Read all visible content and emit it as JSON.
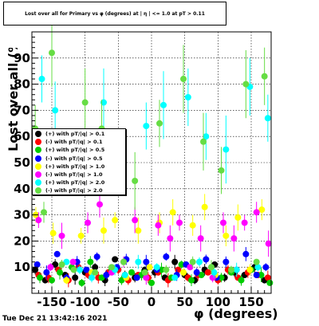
{
  "chart_data": {
    "type": "scatter",
    "title": "Lost over all for Primary vs φ (degrees) at | η | <= 1.0 at pT > 0.11",
    "xlabel": "φ (degrees)",
    "ylabel": "Lost over all (%)",
    "xlim": [
      -180,
      180
    ],
    "ylim": [
      0,
      100
    ],
    "x_ticks": [
      "-150",
      "-100",
      "-50",
      "0",
      "50",
      "100",
      "150"
    ],
    "y_ticks": [
      "10",
      "20",
      "30",
      "40",
      "50",
      "60",
      "70",
      "80",
      "90"
    ],
    "grid": true,
    "legend_position": "left-middle",
    "series": [
      {
        "name": "(+) with pT/|q| > 0.1",
        "color": "#000000",
        "points": [
          [
            -175,
            9
          ],
          [
            -160,
            5
          ],
          [
            -145,
            11
          ],
          [
            -130,
            7
          ],
          [
            -115,
            6
          ],
          [
            -100,
            8
          ],
          [
            -85,
            10
          ],
          [
            -70,
            5
          ],
          [
            -55,
            13
          ],
          [
            -40,
            7
          ],
          [
            -25,
            6
          ],
          [
            -10,
            9
          ],
          [
            5,
            8
          ],
          [
            20,
            6
          ],
          [
            35,
            12
          ],
          [
            50,
            7
          ],
          [
            65,
            5
          ],
          [
            80,
            9
          ],
          [
            95,
            11
          ],
          [
            110,
            6
          ],
          [
            125,
            8
          ],
          [
            140,
            7
          ],
          [
            155,
            10
          ],
          [
            170,
            5
          ]
        ]
      },
      {
        "name": "(-) with pT/|q| > 0.1",
        "color": "#ff0000",
        "points": [
          [
            -170,
            7
          ],
          [
            -155,
            6
          ],
          [
            -140,
            9
          ],
          [
            -125,
            5
          ],
          [
            -110,
            10
          ],
          [
            -95,
            7
          ],
          [
            -80,
            6
          ],
          [
            -65,
            8
          ],
          [
            -50,
            9
          ],
          [
            -35,
            5
          ],
          [
            -20,
            7
          ],
          [
            -5,
            6
          ],
          [
            10,
            8
          ],
          [
            25,
            5
          ],
          [
            40,
            9
          ],
          [
            55,
            6
          ],
          [
            70,
            7
          ],
          [
            85,
            8
          ],
          [
            100,
            5
          ],
          [
            115,
            9
          ],
          [
            130,
            6
          ],
          [
            145,
            8
          ],
          [
            160,
            7
          ],
          [
            175,
            6
          ]
        ]
      },
      {
        "name": "(+) with pT/|q| > 0.5",
        "color": "#00cc00",
        "points": [
          [
            -168,
            6
          ],
          [
            -150,
            5
          ],
          [
            -138,
            8
          ],
          [
            -120,
            10
          ],
          [
            -105,
            4
          ],
          [
            -92,
            12
          ],
          [
            -75,
            6
          ],
          [
            -60,
            9
          ],
          [
            -45,
            5
          ],
          [
            -30,
            8
          ],
          [
            -15,
            7
          ],
          [
            0,
            4
          ],
          [
            15,
            9
          ],
          [
            30,
            6
          ],
          [
            45,
            11
          ],
          [
            60,
            5
          ],
          [
            75,
            7
          ],
          [
            90,
            10
          ],
          [
            105,
            6
          ],
          [
            120,
            8
          ],
          [
            135,
            5
          ],
          [
            150,
            9
          ],
          [
            165,
            7
          ],
          [
            178,
            4
          ]
        ]
      },
      {
        "name": "(-) with pT/|q| > 0.5",
        "color": "#0000ff",
        "points": [
          [
            -172,
            11
          ],
          [
            -158,
            8
          ],
          [
            -142,
            15
          ],
          [
            -128,
            6
          ],
          [
            -112,
            12
          ],
          [
            -98,
            9
          ],
          [
            -82,
            14
          ],
          [
            -68,
            7
          ],
          [
            -52,
            10
          ],
          [
            -38,
            13
          ],
          [
            -22,
            6
          ],
          [
            -8,
            12
          ],
          [
            8,
            9
          ],
          [
            22,
            14
          ],
          [
            38,
            7
          ],
          [
            52,
            11
          ],
          [
            68,
            8
          ],
          [
            82,
            13
          ],
          [
            98,
            6
          ],
          [
            112,
            12
          ],
          [
            128,
            9
          ],
          [
            142,
            15
          ],
          [
            158,
            7
          ],
          [
            172,
            10
          ]
        ]
      },
      {
        "name": "(+) with pT/|q| > 1.0",
        "color": "#ffff00",
        "points": [
          [
            -174,
            30
          ],
          [
            -148,
            23
          ],
          [
            -128,
            5
          ],
          [
            -106,
            22
          ],
          [
            -90,
            8
          ],
          [
            -72,
            24
          ],
          [
            -55,
            28
          ],
          [
            -38,
            6
          ],
          [
            -20,
            24
          ],
          [
            -3,
            10
          ],
          [
            12,
            27
          ],
          [
            32,
            31
          ],
          [
            48,
            8
          ],
          [
            62,
            26
          ],
          [
            80,
            33
          ],
          [
            96,
            7
          ],
          [
            112,
            22
          ],
          [
            130,
            29
          ],
          [
            148,
            9
          ],
          [
            166,
            32
          ]
        ]
      },
      {
        "name": "(-) with pT/|q| > 1.0",
        "color": "#ff00ff",
        "points": [
          [
            -170,
            28
          ],
          [
            -152,
            10
          ],
          [
            -135,
            22
          ],
          [
            -118,
            12
          ],
          [
            -96,
            27
          ],
          [
            -78,
            34
          ],
          [
            -60,
            8
          ],
          [
            -42,
            12
          ],
          [
            -25,
            28
          ],
          [
            -8,
            6
          ],
          [
            10,
            26
          ],
          [
            28,
            21
          ],
          [
            42,
            27
          ],
          [
            58,
            10
          ],
          [
            74,
            21
          ],
          [
            92,
            6
          ],
          [
            108,
            27
          ],
          [
            124,
            21
          ],
          [
            140,
            27
          ],
          [
            158,
            31
          ],
          [
            176,
            19
          ]
        ]
      },
      {
        "name": "(+) with pT/|q| > 2.0",
        "color": "#00ffff",
        "points": [
          [
            -165,
            82
          ],
          [
            -145,
            70
          ],
          [
            -128,
            12
          ],
          [
            -108,
            9
          ],
          [
            -90,
            6
          ],
          [
            -72,
            73
          ],
          [
            -55,
            9
          ],
          [
            -40,
            7
          ],
          [
            -20,
            12
          ],
          [
            -8,
            64
          ],
          [
            8,
            10
          ],
          [
            18,
            72
          ],
          [
            35,
            6
          ],
          [
            55,
            75
          ],
          [
            72,
            12
          ],
          [
            82,
            60
          ],
          [
            94,
            8
          ],
          [
            112,
            55
          ],
          [
            128,
            9
          ],
          [
            148,
            79
          ],
          [
            160,
            10
          ],
          [
            175,
            67
          ]
        ]
      },
      {
        "name": "(-) with pT/|q| > 2.0",
        "color": "#66dd44",
        "points": [
          [
            -175,
            63
          ],
          [
            -162,
            31
          ],
          [
            -150,
            92
          ],
          [
            -135,
            11
          ],
          [
            -117,
            9
          ],
          [
            -100,
            73
          ],
          [
            -85,
            8
          ],
          [
            -75,
            63
          ],
          [
            -60,
            10
          ],
          [
            -42,
            12
          ],
          [
            -25,
            43
          ],
          [
            -10,
            8
          ],
          [
            12,
            65
          ],
          [
            22,
            9
          ],
          [
            48,
            82
          ],
          [
            62,
            12
          ],
          [
            78,
            58
          ],
          [
            90,
            10
          ],
          [
            105,
            47
          ],
          [
            120,
            9
          ],
          [
            142,
            80
          ],
          [
            158,
            12
          ],
          [
            170,
            83
          ]
        ]
      }
    ]
  },
  "timestamp": "Tue Dec 21 13:42:16 2021"
}
